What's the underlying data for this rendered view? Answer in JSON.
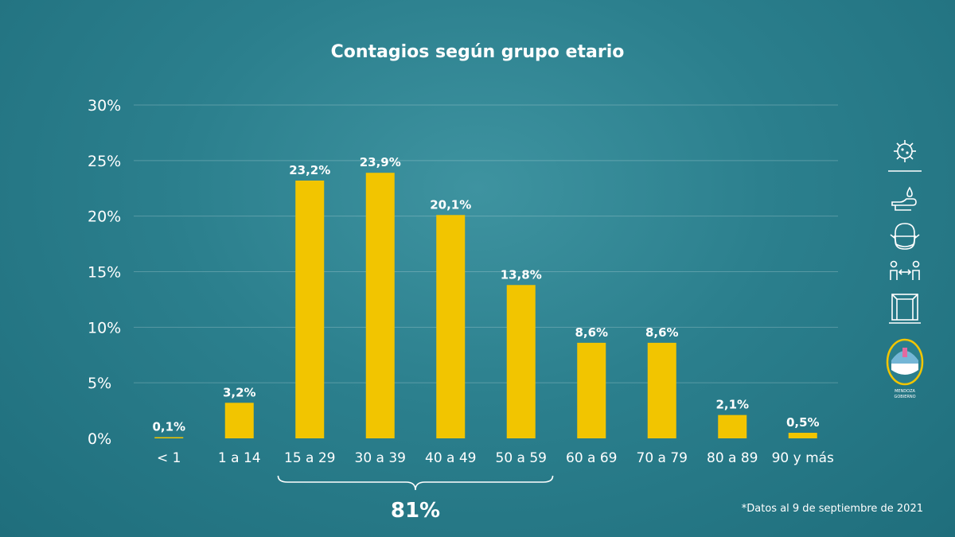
{
  "chart_data": {
    "type": "bar",
    "title": "Contagios según grupo etario",
    "categories": [
      "< 1",
      "1 a 14",
      "15 a 29",
      "30 a 39",
      "40 a 49",
      "50 a 59",
      "60 a 69",
      "70 a 79",
      "80 a 89",
      "90 y más"
    ],
    "values": [
      0.1,
      3.2,
      23.2,
      23.9,
      20.1,
      13.8,
      8.6,
      8.6,
      2.1,
      0.5
    ],
    "data_labels": [
      "0,1%",
      "3,2%",
      "23,2%",
      "23,9%",
      "20,1%",
      "13,8%",
      "8,6%",
      "8,6%",
      "2,1%",
      "0,5%"
    ],
    "yticks": [
      0,
      5,
      10,
      15,
      20,
      25,
      30
    ],
    "ytick_labels": [
      "0%",
      "5%",
      "10%",
      "15%",
      "20%",
      "25%",
      "30%"
    ],
    "ylim": [
      0,
      30
    ],
    "grid": true,
    "bar_color": "#f2c500",
    "annotation": {
      "text": "81%",
      "from_category": "15 a 29",
      "to_category": "50 a 59"
    },
    "footnote": "*Datos al 9 de septiembre de 2021"
  },
  "sidebar": {
    "icons": [
      "virus-icon",
      "hand-wash-icon",
      "face-mask-icon",
      "social-distance-icon",
      "window-ventilation-icon",
      "mendoza-seal-icon"
    ],
    "seal_text": [
      "MENDOZA",
      "GOBIERNO"
    ]
  }
}
